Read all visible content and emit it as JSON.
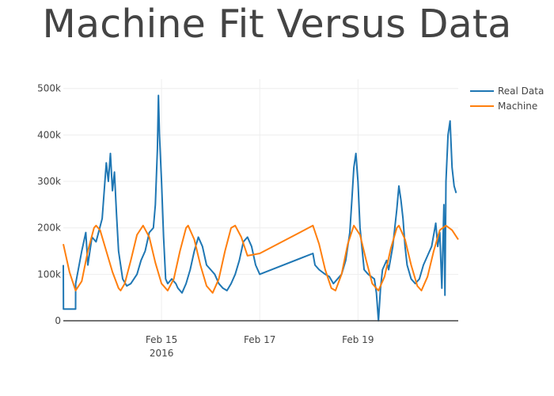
{
  "chart_data": {
    "type": "line",
    "title": "Machine Fit Versus Data",
    "xlabel": "",
    "ylabel": "",
    "ylim": [
      0,
      520000
    ],
    "xlim": [
      "2016-02-13 00:00",
      "2016-02-21 01:00"
    ],
    "y_ticks": [
      {
        "value": 0,
        "label": "0"
      },
      {
        "value": 100000,
        "label": "100k"
      },
      {
        "value": 200000,
        "label": "200k"
      },
      {
        "value": 300000,
        "label": "300k"
      },
      {
        "value": 400000,
        "label": "400k"
      },
      {
        "value": 500000,
        "label": "500k"
      }
    ],
    "x_ticks": [
      {
        "value": "2016-02-15 00:00",
        "label": "Feb 15",
        "sublabel": "2016"
      },
      {
        "value": "2016-02-17 00:00",
        "label": "Feb 17",
        "sublabel": ""
      },
      {
        "value": "2016-02-19 00:00",
        "label": "Feb 19",
        "sublabel": ""
      }
    ],
    "grid": true,
    "legend_position": "top-right",
    "series": [
      {
        "name": "Real Data",
        "color": "#1f77b4",
        "points": [
          [
            "2016-02-13 00:00",
            120000
          ],
          [
            "2016-02-13 00:05",
            25000
          ],
          [
            "2016-02-13 06:00",
            25000
          ],
          [
            "2016-02-13 06:01",
            80000
          ],
          [
            "2016-02-13 09:00",
            150000
          ],
          [
            "2016-02-13 11:00",
            190000
          ],
          [
            "2016-02-13 12:00",
            120000
          ],
          [
            "2016-02-13 14:00",
            180000
          ],
          [
            "2016-02-13 16:00",
            170000
          ],
          [
            "2016-02-13 19:00",
            220000
          ],
          [
            "2016-02-13 21:00",
            340000
          ],
          [
            "2016-02-13 22:00",
            300000
          ],
          [
            "2016-02-13 23:00",
            360000
          ],
          [
            "2016-02-14 00:00",
            280000
          ],
          [
            "2016-02-14 01:00",
            320000
          ],
          [
            "2016-02-14 02:00",
            230000
          ],
          [
            "2016-02-14 03:00",
            150000
          ],
          [
            "2016-02-14 04:00",
            120000
          ],
          [
            "2016-02-14 05:00",
            90000
          ],
          [
            "2016-02-14 07:00",
            75000
          ],
          [
            "2016-02-14 09:00",
            80000
          ],
          [
            "2016-02-14 12:00",
            100000
          ],
          [
            "2016-02-14 14:00",
            130000
          ],
          [
            "2016-02-14 16:00",
            150000
          ],
          [
            "2016-02-14 18:00",
            190000
          ],
          [
            "2016-02-14 20:00",
            200000
          ],
          [
            "2016-02-14 21:00",
            250000
          ],
          [
            "2016-02-14 22:00",
            370000
          ],
          [
            "2016-02-14 22:30",
            485000
          ],
          [
            "2016-02-14 23:00",
            400000
          ],
          [
            "2016-02-15 00:00",
            300000
          ],
          [
            "2016-02-15 01:00",
            180000
          ],
          [
            "2016-02-15 02:00",
            90000
          ],
          [
            "2016-02-15 03:00",
            80000
          ],
          [
            "2016-02-15 05:00",
            90000
          ],
          [
            "2016-02-15 07:00",
            80000
          ],
          [
            "2016-02-15 08:00",
            70000
          ],
          [
            "2016-02-15 10:00",
            60000
          ],
          [
            "2016-02-15 12:00",
            80000
          ],
          [
            "2016-02-15 14:00",
            110000
          ],
          [
            "2016-02-15 16:00",
            150000
          ],
          [
            "2016-02-15 18:00",
            180000
          ],
          [
            "2016-02-15 20:00",
            160000
          ],
          [
            "2016-02-15 22:00",
            120000
          ],
          [
            "2016-02-16 00:00",
            110000
          ],
          [
            "2016-02-16 02:00",
            100000
          ],
          [
            "2016-02-16 04:00",
            80000
          ],
          [
            "2016-02-16 06:00",
            70000
          ],
          [
            "2016-02-16 08:00",
            65000
          ],
          [
            "2016-02-16 10:00",
            80000
          ],
          [
            "2016-02-16 12:00",
            100000
          ],
          [
            "2016-02-16 14:00",
            130000
          ],
          [
            "2016-02-16 16:00",
            170000
          ],
          [
            "2016-02-16 18:00",
            180000
          ],
          [
            "2016-02-16 20:00",
            160000
          ],
          [
            "2016-02-16 22:00",
            120000
          ],
          [
            "2016-02-17 00:00",
            100000
          ],
          [
            "2016-02-18 02:00",
            145000
          ],
          [
            "2016-02-18 03:00",
            120000
          ],
          [
            "2016-02-18 05:00",
            110000
          ],
          [
            "2016-02-18 08:00",
            100000
          ],
          [
            "2016-02-18 10:00",
            95000
          ],
          [
            "2016-02-18 12:00",
            80000
          ],
          [
            "2016-02-18 14:00",
            90000
          ],
          [
            "2016-02-18 16:00",
            100000
          ],
          [
            "2016-02-18 18:00",
            130000
          ],
          [
            "2016-02-18 20:00",
            190000
          ],
          [
            "2016-02-18 21:00",
            260000
          ],
          [
            "2016-02-18 22:00",
            330000
          ],
          [
            "2016-02-18 23:00",
            360000
          ],
          [
            "2016-02-19 00:00",
            300000
          ],
          [
            "2016-02-19 01:00",
            200000
          ],
          [
            "2016-02-19 03:00",
            110000
          ],
          [
            "2016-02-19 05:00",
            100000
          ],
          [
            "2016-02-19 08:00",
            90000
          ],
          [
            "2016-02-19 09:00",
            60000
          ],
          [
            "2016-02-19 10:00",
            0
          ],
          [
            "2016-02-19 11:00",
            70000
          ],
          [
            "2016-02-19 12:00",
            110000
          ],
          [
            "2016-02-19 14:00",
            130000
          ],
          [
            "2016-02-19 15:00",
            110000
          ],
          [
            "2016-02-19 17:00",
            160000
          ],
          [
            "2016-02-19 19:00",
            240000
          ],
          [
            "2016-02-19 20:00",
            290000
          ],
          [
            "2016-02-19 21:00",
            260000
          ],
          [
            "2016-02-19 22:00",
            220000
          ],
          [
            "2016-02-19 23:00",
            160000
          ],
          [
            "2016-02-20 00:00",
            120000
          ],
          [
            "2016-02-20 02:00",
            90000
          ],
          [
            "2016-02-20 04:00",
            80000
          ],
          [
            "2016-02-20 06:00",
            90000
          ],
          [
            "2016-02-20 08:00",
            120000
          ],
          [
            "2016-02-20 10:00",
            140000
          ],
          [
            "2016-02-20 12:00",
            160000
          ],
          [
            "2016-02-20 14:00",
            210000
          ],
          [
            "2016-02-20 15:00",
            160000
          ],
          [
            "2016-02-20 16:00",
            190000
          ],
          [
            "2016-02-20 17:00",
            70000
          ],
          [
            "2016-02-20 18:00",
            250000
          ],
          [
            "2016-02-20 18:30",
            55000
          ],
          [
            "2016-02-20 19:00",
            300000
          ],
          [
            "2016-02-20 20:00",
            400000
          ],
          [
            "2016-02-20 21:00",
            430000
          ],
          [
            "2016-02-20 22:00",
            330000
          ],
          [
            "2016-02-20 23:00",
            290000
          ],
          [
            "2016-02-21 00:00",
            275000
          ]
        ]
      },
      {
        "name": "Machine",
        "color": "#ff7f0e",
        "points": [
          [
            "2016-02-13 00:00",
            165000
          ],
          [
            "2016-02-13 03:00",
            105000
          ],
          [
            "2016-02-13 06:00",
            65000
          ],
          [
            "2016-02-13 09:00",
            85000
          ],
          [
            "2016-02-13 12:00",
            150000
          ],
          [
            "2016-02-13 15:00",
            200000
          ],
          [
            "2016-02-13 16:00",
            205000
          ],
          [
            "2016-02-13 18:00",
            195000
          ],
          [
            "2016-02-13 21:00",
            150000
          ],
          [
            "2016-02-14 00:00",
            105000
          ],
          [
            "2016-02-14 03:00",
            70000
          ],
          [
            "2016-02-14 04:00",
            65000
          ],
          [
            "2016-02-14 06:00",
            80000
          ],
          [
            "2016-02-14 09:00",
            130000
          ],
          [
            "2016-02-14 12:00",
            185000
          ],
          [
            "2016-02-14 15:00",
            205000
          ],
          [
            "2016-02-14 18:00",
            180000
          ],
          [
            "2016-02-14 21:00",
            125000
          ],
          [
            "2016-02-15 00:00",
            80000
          ],
          [
            "2016-02-15 03:00",
            65000
          ],
          [
            "2016-02-15 06:00",
            90000
          ],
          [
            "2016-02-15 09:00",
            150000
          ],
          [
            "2016-02-15 12:00",
            200000
          ],
          [
            "2016-02-15 13:00",
            205000
          ],
          [
            "2016-02-15 16:00",
            175000
          ],
          [
            "2016-02-15 19:00",
            120000
          ],
          [
            "2016-02-15 22:00",
            75000
          ],
          [
            "2016-02-16 01:00",
            60000
          ],
          [
            "2016-02-16 04:00",
            90000
          ],
          [
            "2016-02-16 07:00",
            150000
          ],
          [
            "2016-02-16 10:00",
            200000
          ],
          [
            "2016-02-16 12:00",
            205000
          ],
          [
            "2016-02-16 15:00",
            180000
          ],
          [
            "2016-02-16 18:00",
            140000
          ],
          [
            "2016-02-17 00:00",
            145000
          ],
          [
            "2016-02-18 02:00",
            205000
          ],
          [
            "2016-02-18 05:00",
            165000
          ],
          [
            "2016-02-18 08:00",
            110000
          ],
          [
            "2016-02-18 11:00",
            70000
          ],
          [
            "2016-02-18 13:00",
            65000
          ],
          [
            "2016-02-18 16:00",
            100000
          ],
          [
            "2016-02-18 19:00",
            165000
          ],
          [
            "2016-02-18 22:00",
            205000
          ],
          [
            "2016-02-19 01:00",
            185000
          ],
          [
            "2016-02-19 04:00",
            130000
          ],
          [
            "2016-02-19 07:00",
            80000
          ],
          [
            "2016-02-19 10:00",
            65000
          ],
          [
            "2016-02-19 13:00",
            95000
          ],
          [
            "2016-02-19 16:00",
            155000
          ],
          [
            "2016-02-19 19:00",
            200000
          ],
          [
            "2016-02-19 20:00",
            205000
          ],
          [
            "2016-02-19 23:00",
            175000
          ],
          [
            "2016-02-20 02:00",
            120000
          ],
          [
            "2016-02-20 05:00",
            75000
          ],
          [
            "2016-02-20 07:00",
            65000
          ],
          [
            "2016-02-20 10:00",
            95000
          ],
          [
            "2016-02-20 13:00",
            150000
          ],
          [
            "2016-02-20 16:00",
            195000
          ],
          [
            "2016-02-20 19:00",
            205000
          ],
          [
            "2016-02-20 22:00",
            195000
          ],
          [
            "2016-02-21 01:00",
            175000
          ]
        ]
      }
    ]
  }
}
